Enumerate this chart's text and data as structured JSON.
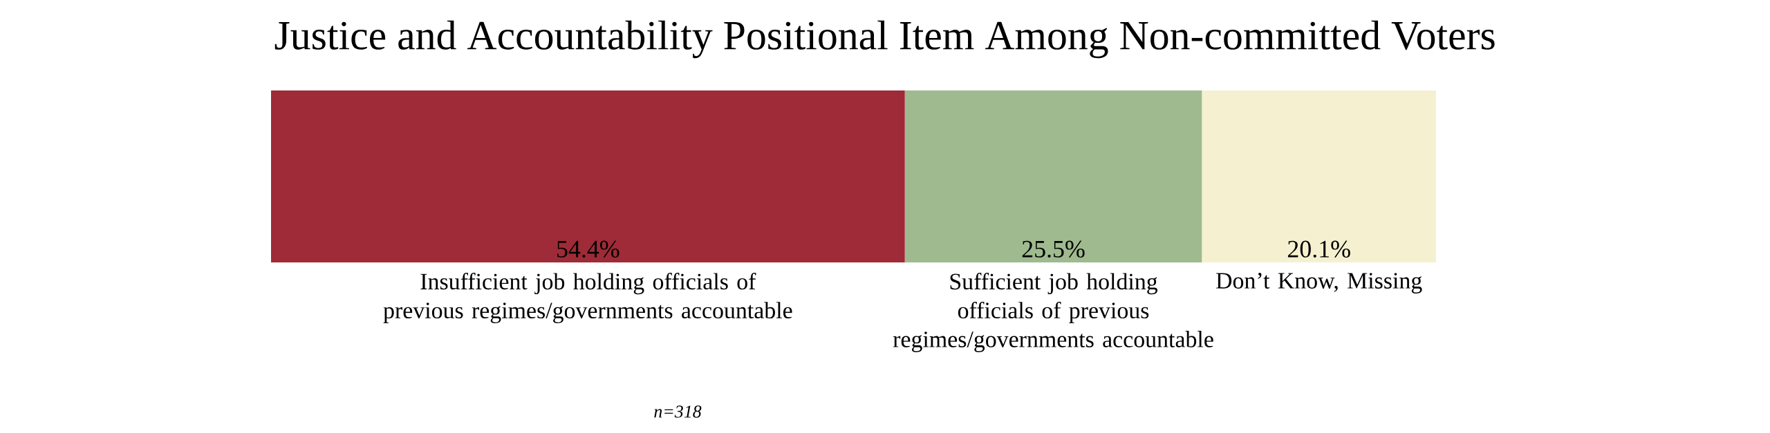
{
  "chart_data": {
    "type": "bar",
    "orientation": "horizontal",
    "stacked": true,
    "title": "Justice and Accountability Positional Item Among Non-committed Voters",
    "categories": [
      null
    ],
    "series": [
      {
        "name": "Insufficient job holding officials of previous regimes/governments accountable",
        "color": "#9e2b37",
        "values": [
          54.4
        ],
        "value_labels": [
          "54.4%"
        ]
      },
      {
        "name": "Sufficient job holding officials of previous regimes/governments accountable",
        "color": "#9fba8f",
        "values": [
          25.5
        ],
        "value_labels": [
          "25.5%"
        ]
      },
      {
        "name": "Don’t Know, Missing",
        "color": "#f5f1d0",
        "values": [
          20.1
        ],
        "value_labels": [
          "20.1%"
        ]
      }
    ],
    "annotations": [
      "n=318"
    ]
  }
}
